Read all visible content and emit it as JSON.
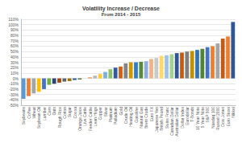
{
  "chart_data": {
    "type": "bar",
    "title": "Volatility Increase / Decrease",
    "subtitle": "From 2014 - 2015",
    "categories": [
      "Soybeans",
      "Coffee",
      "Wheat",
      "Soybean Oil",
      "Lumber",
      "Corn",
      "Oats",
      "Rough Rice",
      "Cotton",
      "Sugar",
      "Cocoa",
      "Orange Juice",
      "Live Cattle",
      "Feeder Cattle",
      "Lean Hogs",
      "Copper",
      "Silver",
      "Platinum",
      "Palladium",
      "Gold",
      "Crude Oil",
      "Heating Oil",
      "Gasoline",
      "Natural Gas",
      "Brent Crude",
      "Euro FX",
      "Japanese Yen",
      "British Pound",
      "Swiss Franc",
      "Canadian Dollar",
      "Australian Dollar",
      "Dollar Index",
      "Eurodollar",
      "T-Bonds",
      "10 Year Note",
      "5 Year Note",
      "S&P 500",
      "Nasdaq 100",
      "Russell 2000",
      "Dow Jones",
      "Euro Stoxx",
      "Nikkei"
    ],
    "values": [
      -38,
      -33,
      -28,
      -25,
      -20,
      -12,
      -10,
      -8,
      -6,
      -5,
      -3,
      -2,
      0,
      2,
      5,
      8,
      12,
      17,
      20,
      22,
      28,
      30,
      30,
      31,
      32,
      36,
      38,
      42,
      43,
      45,
      47,
      48,
      50,
      51,
      53,
      55,
      58,
      60,
      65,
      74,
      78,
      105
    ],
    "colors": [
      "#5b9bd5",
      "#ed7d31",
      "#a5a5a5",
      "#ffc000",
      "#4472c4",
      "#70ad47",
      "#264478",
      "#9e480e",
      "#636363",
      "#997300",
      "#255e91",
      "#43682b",
      "#698ed0",
      "#f1975a",
      "#b7b7b7",
      "#ffcd33",
      "#7cafdd",
      "#8cc168",
      "#335aa1",
      "#d26012",
      "#848484",
      "#cc9a00",
      "#327dc2",
      "#5a8a39",
      "#8faadc",
      "#f4b183",
      "#c9c9c9",
      "#ffd966",
      "#9dc3e6",
      "#a9d18e",
      "#2f5597",
      "#c55a11",
      "#7f7f7f",
      "#bf9000",
      "#2e75b6",
      "#548235",
      "#4472c4",
      "#ed7d31",
      "#a5a5a5",
      "#c55a11",
      "#ed7d31",
      "#2f5597"
    ],
    "ylim": [
      -50,
      110
    ],
    "yticks": [
      {
        "value": -50,
        "label": "-50%"
      },
      {
        "value": -40,
        "label": "-40%"
      },
      {
        "value": -30,
        "label": "-30%"
      },
      {
        "value": -20,
        "label": "-20%"
      },
      {
        "value": -10,
        "label": "-10%"
      },
      {
        "value": 0,
        "label": "0%"
      },
      {
        "value": 10,
        "label": "10%"
      },
      {
        "value": 20,
        "label": "20%"
      },
      {
        "value": 30,
        "label": "30%"
      },
      {
        "value": 40,
        "label": "40%"
      },
      {
        "value": 50,
        "label": "50%"
      },
      {
        "value": 60,
        "label": "60%"
      },
      {
        "value": 70,
        "label": "70%"
      },
      {
        "value": 80,
        "label": "80%"
      },
      {
        "value": 90,
        "label": "90%"
      },
      {
        "value": 100,
        "label": "100%"
      },
      {
        "value": 110,
        "label": "110%"
      }
    ],
    "grid": true
  }
}
